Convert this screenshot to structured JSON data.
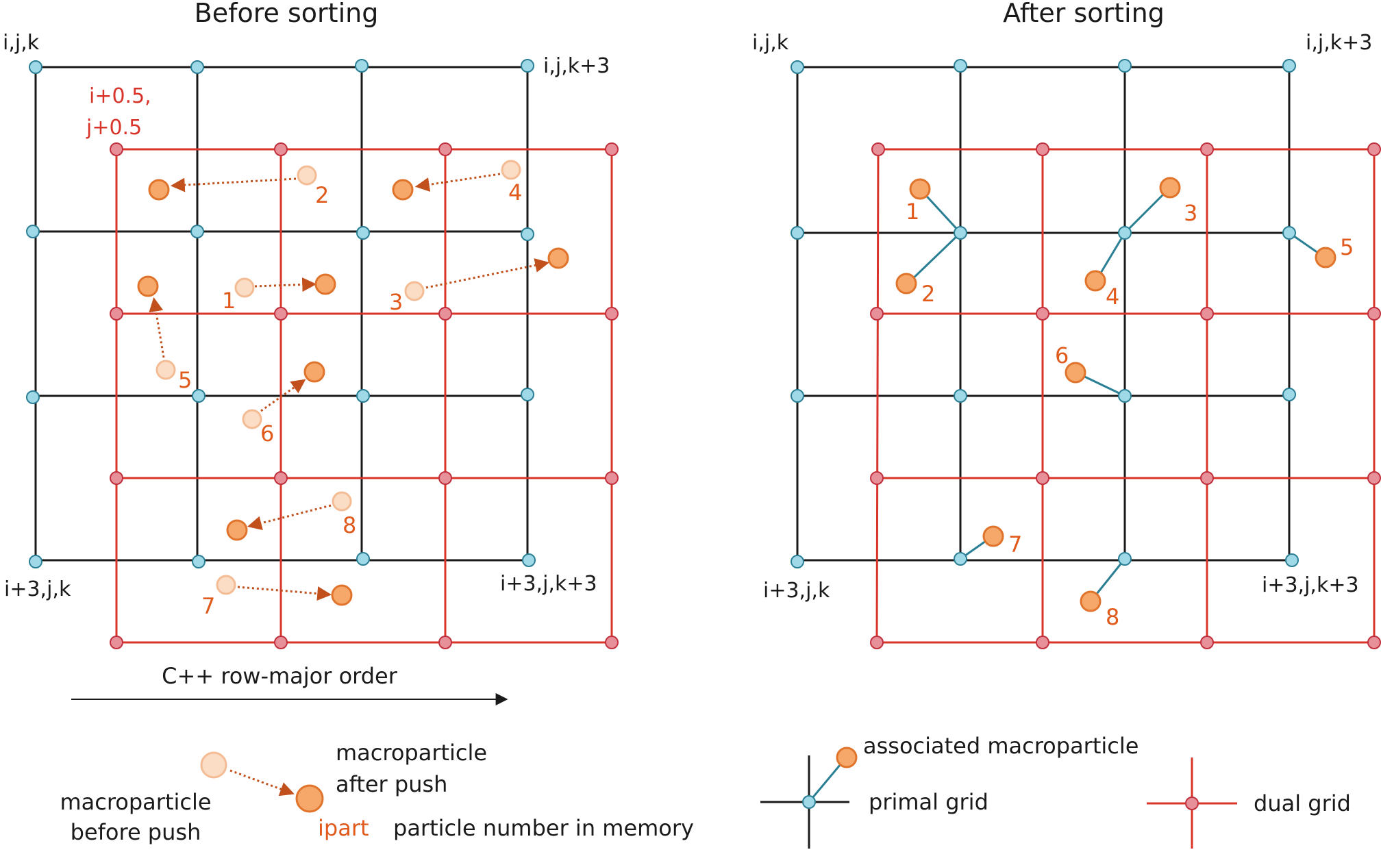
{
  "left_panel": {
    "title": "Before sorting",
    "corner_labels": {
      "top_left": "i,j,k",
      "top_right": "i,j,k+3",
      "bottom_left": "i+3,j,k",
      "bottom_right": "i+3,j,k+3"
    },
    "dual_origin_label": [
      "i+0.5,",
      "j+0.5"
    ],
    "order_label": "C++ row-major order",
    "particles": [
      {
        "num": "1"
      },
      {
        "num": "2"
      },
      {
        "num": "3"
      },
      {
        "num": "4"
      },
      {
        "num": "5"
      },
      {
        "num": "6"
      },
      {
        "num": "7"
      },
      {
        "num": "8"
      }
    ]
  },
  "right_panel": {
    "title": "After sorting",
    "corner_labels": {
      "top_left": "i,j,k",
      "top_right": "i,j,k+3",
      "bottom_left": "i+3,j,k",
      "bottom_right": "i+3,j,k+3"
    },
    "particles": [
      {
        "num": "1"
      },
      {
        "num": "2"
      },
      {
        "num": "3"
      },
      {
        "num": "4"
      },
      {
        "num": "5"
      },
      {
        "num": "6"
      },
      {
        "num": "7"
      },
      {
        "num": "8"
      }
    ]
  },
  "legend": {
    "before_push": [
      "macroparticle",
      "before push"
    ],
    "after_push": [
      "macroparticle",
      "after push"
    ],
    "ipart_key": "ipart",
    "ipart_desc": "particle number in memory",
    "associated": "associated macroparticle",
    "primal_grid": "primal grid",
    "dual_grid": "dual grid"
  },
  "colors": {
    "primal_line": "#1a1a1a",
    "primal_node": "#9fd8e6",
    "dual_line": "#d8342a",
    "dual_node": "#e8909a",
    "particle_fill": "#f5a86a",
    "particle_stroke": "#e0742c",
    "ghost_fill": "#fbdcc4",
    "ghost_stroke": "#f3bc95",
    "arrow": "#c2501c",
    "assoc_line": "#2a7f94"
  }
}
